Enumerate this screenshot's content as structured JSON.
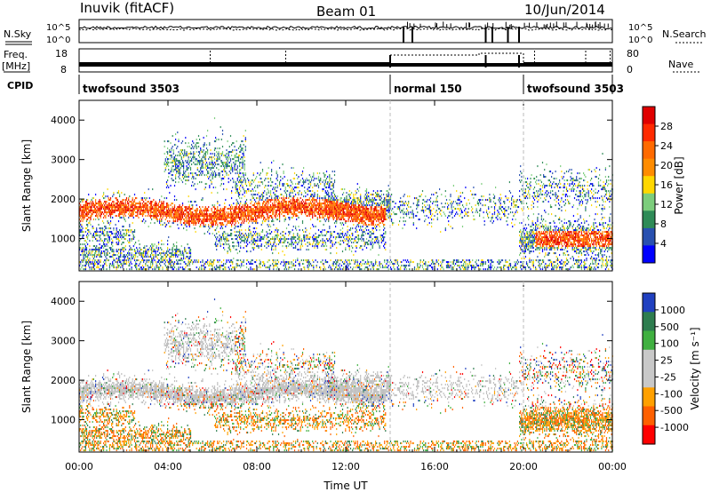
{
  "header": {
    "site": "Inuvik (fitACF)",
    "beam": "Beam 01",
    "date": "10/Jun/2014"
  },
  "noise_panel": {
    "left_label": "N.Sky",
    "right_label": "N.Search",
    "ticks_top": "10^5",
    "ticks_bottom": "10^0"
  },
  "freq_panel": {
    "left_label_1": "Freq.",
    "left_label_2": "[MHz]",
    "right_label": "Nave",
    "left_ticks": [
      "18",
      "8"
    ],
    "right_ticks": [
      "80",
      "0"
    ]
  },
  "cpid": {
    "label": "CPID",
    "segments": [
      {
        "name": "twofsound 3503",
        "start_hour": 0,
        "end_hour": 14
      },
      {
        "name": "normal 150",
        "start_hour": 14,
        "end_hour": 20
      },
      {
        "name": "twofsound 3503",
        "start_hour": 20,
        "end_hour": 24
      }
    ]
  },
  "colors": {
    "power": [
      "#0000ff",
      "#2850b0",
      "#2e8b57",
      "#7ccd7c",
      "#ffd700",
      "#ff8c00",
      "#ff6a00",
      "#ff2a00",
      "#e00000"
    ],
    "velocity": [
      "#2040c0",
      "#2e7d4f",
      "#40b040",
      "#c8c8c8",
      "#c8c8c8",
      "#ffa000",
      "#ff6000",
      "#ff0000"
    ],
    "ground_scatter": "#bebebe"
  },
  "chart_data": [
    {
      "type": "heatmap",
      "name": "power",
      "ylabel": "Slant Range [km]",
      "xlim": [
        0,
        24
      ],
      "ylim": [
        180,
        4500
      ],
      "yticks": [
        1000,
        2000,
        3000,
        4000
      ],
      "xticks": [
        "00:00",
        "04:00",
        "08:00",
        "12:00",
        "16:00",
        "20:00",
        "00:00"
      ],
      "colorbar": {
        "label": "Power [dB]",
        "range": [
          0,
          30
        ],
        "ticks": [
          "4",
          "8",
          "12",
          "16",
          "20",
          "24",
          "28"
        ]
      },
      "mode_change_hours": [
        14,
        20
      ]
    },
    {
      "type": "heatmap",
      "name": "velocity",
      "ylabel": "Slant Range [km]",
      "xlabel": "Time UT",
      "xlim": [
        0,
        24
      ],
      "ylim": [
        180,
        4500
      ],
      "yticks": [
        1000,
        2000,
        3000,
        4000
      ],
      "xticks": [
        "00:00",
        "04:00",
        "08:00",
        "12:00",
        "16:00",
        "20:00",
        "00:00"
      ],
      "colorbar": {
        "label": "Velocity [m s⁻¹]",
        "ticks": [
          "1000",
          "500",
          "100",
          "25",
          "-25",
          "-100",
          "-500",
          "-1000"
        ]
      },
      "mode_change_hours": [
        14,
        20
      ]
    }
  ]
}
